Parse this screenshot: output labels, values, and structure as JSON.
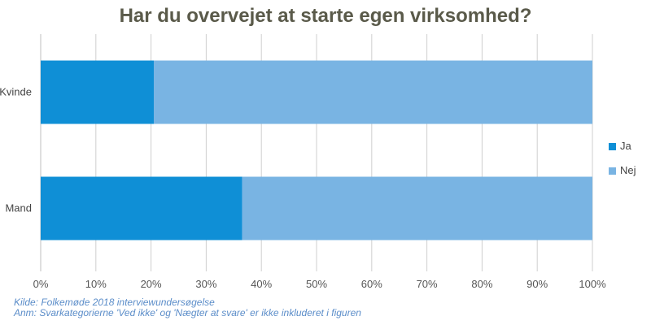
{
  "chart_data": {
    "type": "bar",
    "orientation": "horizontal",
    "stacked": true,
    "percent": true,
    "title": "Har du overvejet at starte egen virksomhed?",
    "categories": [
      "Kvinde",
      "Mand"
    ],
    "series": [
      {
        "name": "Ja",
        "values": [
          20.5,
          36.5
        ],
        "color": "#0f8fd6"
      },
      {
        "name": "Nej",
        "values": [
          79.5,
          63.5
        ],
        "color": "#79b4e3"
      }
    ],
    "xlim": [
      0,
      100
    ],
    "xticks": [
      "0%",
      "10%",
      "20%",
      "30%",
      "40%",
      "50%",
      "60%",
      "70%",
      "80%",
      "90%",
      "100%"
    ],
    "grid": true,
    "legend_position": "right"
  },
  "notes": {
    "source": "Kilde: Folkemøde 2018 interviewundersøgelse",
    "remark": "Anm: Svarkategorierne 'Ved ikke' og 'Nægter at svare' er ikke inkluderet i figuren"
  }
}
